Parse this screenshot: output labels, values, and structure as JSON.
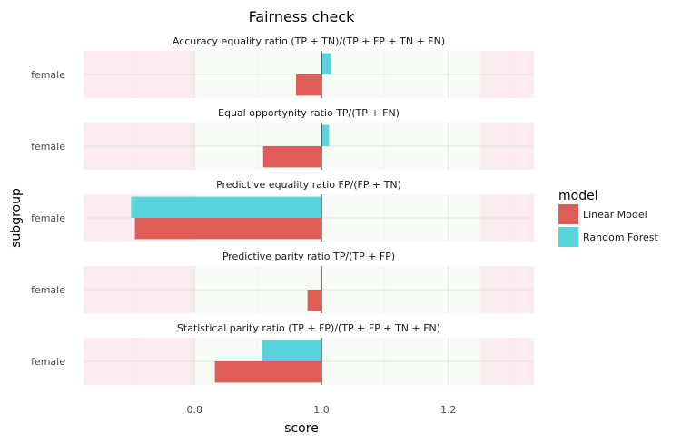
{
  "chart_data": {
    "type": "bar",
    "orientation": "horizontal",
    "title": "Fairness check",
    "xlabel": "score",
    "ylabel": "subgroup",
    "baseline": 1.0,
    "xlim": [
      0.625,
      1.335
    ],
    "xticks": [
      0.8,
      1.0,
      1.2
    ],
    "xtick_labels": [
      "0.8",
      "1.0",
      "1.2"
    ],
    "fair_range": [
      0.8,
      1.25
    ],
    "subgroup": "female",
    "legend": {
      "title": "model",
      "position": "right",
      "entries": [
        {
          "name": "Linear Model",
          "color": "#de5d57"
        },
        {
          "name": "Random Forest",
          "color": "#57d4dc"
        }
      ]
    },
    "colors": {
      "unfair_zone": "#fdecef",
      "fair_zone": "#f7fcf6",
      "baseline": "#000000"
    },
    "panels": [
      {
        "title": "Accuracy equality ratio    (TP + TN)/(TP + FP + TN + FN)",
        "values": {
          "Linear Model": 0.96,
          "Random Forest": 1.015
        }
      },
      {
        "title": "Equal opportynity ratio     TP/(TP + FN)",
        "values": {
          "Linear Model": 0.908,
          "Random Forest": 1.012
        }
      },
      {
        "title": "Predictive equality ratio   FP/(FP + TN)",
        "values": {
          "Linear Model": 0.706,
          "Random Forest": 0.7
        }
      },
      {
        "title": "Predictive parity ratio     TP/(TP + FP)",
        "values": {
          "Linear Model": 0.978,
          "Random Forest": null
        }
      },
      {
        "title": "Statistical parity ratio    (TP + FP)/(TP + FP + TN + FN)",
        "values": {
          "Linear Model": 0.832,
          "Random Forest": 0.906
        }
      }
    ]
  }
}
